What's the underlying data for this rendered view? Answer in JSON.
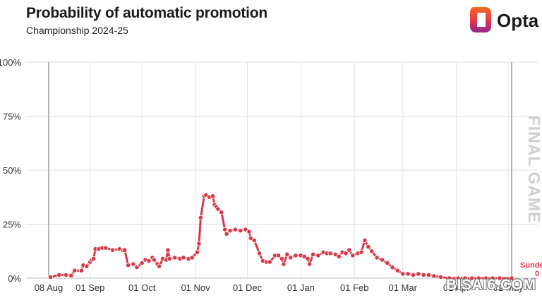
{
  "header": {
    "title": "Probability of automatic promotion",
    "subtitle": "Championship 2024-25"
  },
  "brand": {
    "logo_text": "Opta",
    "logo_colors": [
      "#f26b21",
      "#e8334a",
      "#8c2a8c"
    ]
  },
  "watermark": "BISAI6.COM",
  "final_game_label": "FINAL GAME",
  "end_label": {
    "team": "Sunde",
    "value": "0"
  },
  "chart_data": {
    "type": "line",
    "title": "Probability of automatic promotion",
    "subtitle": "Championship 2024-25",
    "ylim": [
      0,
      100
    ],
    "y_ticks": [
      0,
      25,
      50,
      75,
      100
    ],
    "y_tick_labels": [
      "0%",
      "25%",
      "50%",
      "75%",
      "100%"
    ],
    "x_tick_labels": [
      "08 Aug",
      "01 Sep",
      "01 Oct",
      "01 Nov",
      "01 Dec",
      "01 Jan",
      "01 Feb",
      "01 Mar",
      "01 Apr",
      "01 May"
    ],
    "x_tick_dates": [
      "2024-08-08",
      "2024-09-01",
      "2024-10-01",
      "2024-11-01",
      "2024-12-01",
      "2025-01-01",
      "2025-02-01",
      "2025-03-01",
      "2025-04-01",
      "2025-05-01"
    ],
    "x_range": [
      "2024-08-08",
      "2025-05-03"
    ],
    "grid": true,
    "final_game_date": "2025-05-03",
    "series_color": "#d63a49",
    "series": [
      {
        "name": "Sunderland",
        "points": [
          [
            "2024-08-09",
            0.5
          ],
          [
            "2024-08-14",
            1.5
          ],
          [
            "2024-08-18",
            1.5
          ],
          [
            "2024-08-21",
            1.2
          ],
          [
            "2024-08-23",
            3.5
          ],
          [
            "2024-08-27",
            3.5
          ],
          [
            "2024-08-28",
            6.0
          ],
          [
            "2024-08-30",
            5.5
          ],
          [
            "2024-09-01",
            7.5
          ],
          [
            "2024-09-02",
            8.5
          ],
          [
            "2024-09-03",
            9.0
          ],
          [
            "2024-09-04",
            13.5
          ],
          [
            "2024-09-06",
            13.5
          ],
          [
            "2024-09-08",
            14.0
          ],
          [
            "2024-09-10",
            14.0
          ],
          [
            "2024-09-14",
            13.0
          ],
          [
            "2024-09-18",
            13.5
          ],
          [
            "2024-09-20",
            13.0
          ],
          [
            "2024-09-21",
            13.0
          ],
          [
            "2024-09-23",
            6.0
          ],
          [
            "2024-09-26",
            6.5
          ],
          [
            "2024-09-28",
            5.0
          ],
          [
            "2024-10-01",
            7.0
          ],
          [
            "2024-10-03",
            8.5
          ],
          [
            "2024-10-05",
            8.0
          ],
          [
            "2024-10-07",
            9.5
          ],
          [
            "2024-10-08",
            8.5
          ],
          [
            "2024-10-10",
            6.5
          ],
          [
            "2024-10-11",
            5.5
          ],
          [
            "2024-10-13",
            9.0
          ],
          [
            "2024-10-15",
            8.5
          ],
          [
            "2024-10-16",
            13.0
          ],
          [
            "2024-10-17",
            9.0
          ],
          [
            "2024-10-20",
            9.5
          ],
          [
            "2024-10-23",
            9.0
          ],
          [
            "2024-10-25",
            9.5
          ],
          [
            "2024-10-28",
            9.0
          ],
          [
            "2024-10-30",
            9.5
          ],
          [
            "2024-11-02",
            12.0
          ],
          [
            "2024-11-03",
            16.0
          ],
          [
            "2024-11-04",
            28.0
          ],
          [
            "2024-11-06",
            38.0
          ],
          [
            "2024-11-07",
            38.5
          ],
          [
            "2024-11-09",
            37.5
          ],
          [
            "2024-11-11",
            38.0
          ],
          [
            "2024-11-12",
            34.0
          ],
          [
            "2024-11-13",
            33.0
          ],
          [
            "2024-11-14",
            32.0
          ],
          [
            "2024-11-16",
            30.5
          ],
          [
            "2024-11-18",
            22.5
          ],
          [
            "2024-11-19",
            20.5
          ],
          [
            "2024-11-21",
            22.0
          ],
          [
            "2024-11-24",
            22.5
          ],
          [
            "2024-11-27",
            22.0
          ],
          [
            "2024-11-30",
            22.5
          ],
          [
            "2024-12-02",
            21.5
          ],
          [
            "2024-12-03",
            18.5
          ],
          [
            "2024-12-05",
            17.5
          ],
          [
            "2024-12-08",
            11.5
          ],
          [
            "2024-12-10",
            8.0
          ],
          [
            "2024-12-12",
            7.5
          ],
          [
            "2024-12-14",
            7.5
          ],
          [
            "2024-12-17",
            10.5
          ],
          [
            "2024-12-19",
            10.5
          ],
          [
            "2024-12-21",
            9.0
          ],
          [
            "2024-12-22",
            6.5
          ],
          [
            "2024-12-24",
            11.0
          ],
          [
            "2024-12-26",
            9.5
          ],
          [
            "2024-12-29",
            10.5
          ],
          [
            "2025-01-01",
            10.5
          ],
          [
            "2025-01-03",
            10.0
          ],
          [
            "2025-01-05",
            9.0
          ],
          [
            "2025-01-06",
            6.5
          ],
          [
            "2025-01-08",
            11.0
          ],
          [
            "2025-01-11",
            10.5
          ],
          [
            "2025-01-14",
            12.0
          ],
          [
            "2025-01-16",
            11.5
          ],
          [
            "2025-01-18",
            11.5
          ],
          [
            "2025-01-21",
            11.0
          ],
          [
            "2025-01-23",
            10.0
          ],
          [
            "2025-01-25",
            12.0
          ],
          [
            "2025-01-27",
            11.5
          ],
          [
            "2025-01-29",
            13.0
          ],
          [
            "2025-01-31",
            10.5
          ],
          [
            "2025-02-03",
            11.5
          ],
          [
            "2025-02-05",
            12.0
          ],
          [
            "2025-02-07",
            17.5
          ],
          [
            "2025-02-09",
            14.5
          ],
          [
            "2025-02-11",
            12.5
          ],
          [
            "2025-02-14",
            9.5
          ],
          [
            "2025-02-17",
            8.5
          ],
          [
            "2025-02-20",
            7.0
          ],
          [
            "2025-02-23",
            5.0
          ],
          [
            "2025-02-26",
            3.5
          ],
          [
            "2025-03-01",
            2.0
          ],
          [
            "2025-03-04",
            2.0
          ],
          [
            "2025-03-07",
            1.5
          ],
          [
            "2025-03-10",
            2.0
          ],
          [
            "2025-03-13",
            1.5
          ],
          [
            "2025-03-16",
            1.5
          ],
          [
            "2025-03-19",
            1.0
          ],
          [
            "2025-03-23",
            0.5
          ],
          [
            "2025-03-28",
            0.0
          ],
          [
            "2025-04-02",
            0.0
          ],
          [
            "2025-04-06",
            0.0
          ],
          [
            "2025-04-10",
            0.0
          ],
          [
            "2025-04-14",
            0.0
          ],
          [
            "2025-04-18",
            0.0
          ],
          [
            "2025-04-22",
            0.0
          ],
          [
            "2025-04-26",
            0.0
          ],
          [
            "2025-05-03",
            0.0
          ]
        ]
      }
    ]
  }
}
